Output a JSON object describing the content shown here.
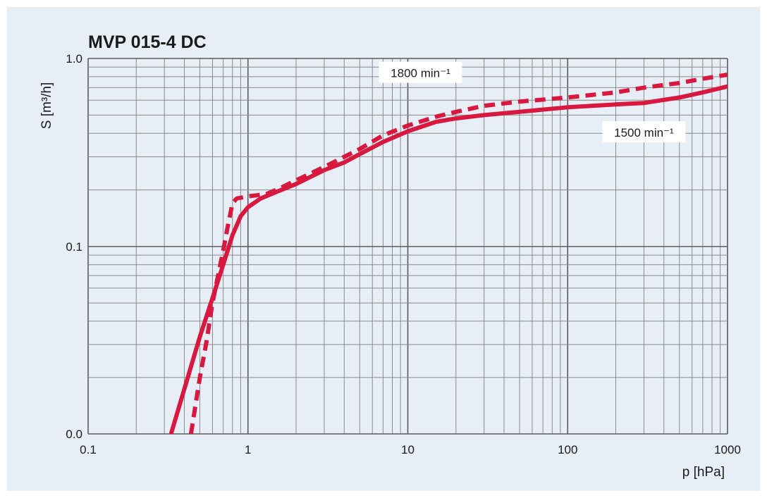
{
  "chart_data": {
    "type": "line",
    "title": "MVP 015-4 DC",
    "xlabel": "p [hPa]",
    "ylabel": "S  [m³/h]",
    "x_scale": "log",
    "y_scale": "log",
    "xlim": [
      0.1,
      1000
    ],
    "y_ticks": [
      "0.0",
      "0.1",
      "1.0"
    ],
    "x_ticks": [
      "0.1",
      "1",
      "10",
      "100",
      "1000"
    ],
    "grid": true,
    "series": [
      {
        "name": "1500 min⁻¹",
        "style": "solid",
        "color": "#d8183e",
        "x": [
          0.33,
          0.5,
          0.6,
          0.7,
          0.8,
          0.9,
          1.0,
          1.2,
          1.5,
          2,
          3,
          4,
          5,
          7,
          10,
          15,
          20,
          30,
          50,
          100,
          200,
          300,
          500,
          700,
          1000
        ],
        "y": [
          0.01,
          0.033,
          0.053,
          0.08,
          0.115,
          0.145,
          0.162,
          0.18,
          0.195,
          0.215,
          0.255,
          0.28,
          0.31,
          0.36,
          0.41,
          0.46,
          0.48,
          0.5,
          0.52,
          0.55,
          0.57,
          0.58,
          0.62,
          0.66,
          0.71
        ]
      },
      {
        "name": "1800 min⁻¹",
        "style": "dashed",
        "color": "#d8183e",
        "x": [
          0.44,
          0.5,
          0.55,
          0.6,
          0.65,
          0.7,
          0.75,
          0.8,
          0.85,
          1.0,
          1.3,
          1.6,
          2,
          3,
          5,
          7,
          10,
          15,
          20,
          30,
          50,
          100,
          200,
          300,
          500,
          700,
          1000
        ],
        "y": [
          0.01,
          0.02,
          0.031,
          0.05,
          0.07,
          0.095,
          0.13,
          0.17,
          0.18,
          0.185,
          0.19,
          0.205,
          0.225,
          0.265,
          0.33,
          0.39,
          0.44,
          0.49,
          0.52,
          0.56,
          0.59,
          0.62,
          0.66,
          0.7,
          0.74,
          0.78,
          0.82
        ]
      }
    ]
  }
}
